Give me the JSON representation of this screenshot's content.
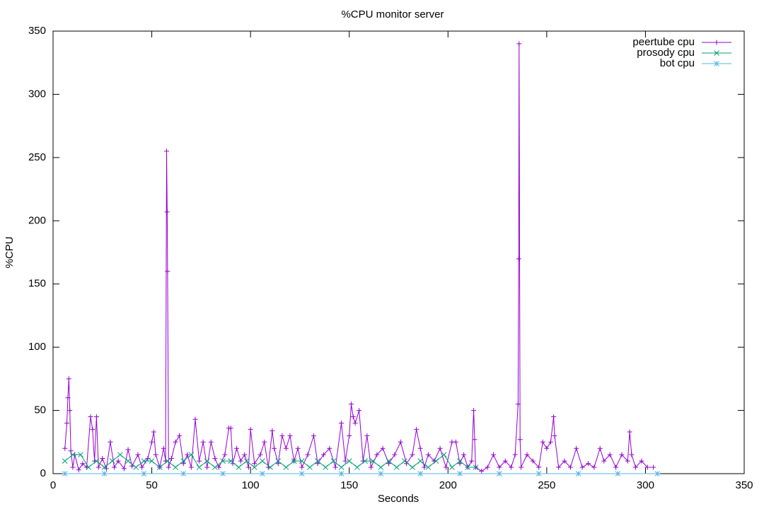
{
  "chart_data": {
    "type": "line",
    "title": "%CPU monitor server",
    "xlabel": "Seconds",
    "ylabel": "%CPU",
    "xlim": [
      0,
      350
    ],
    "xticks": [
      0,
      50,
      100,
      150,
      200,
      250,
      300,
      350
    ],
    "ylim": [
      0,
      350
    ],
    "yticks": [
      0,
      50,
      100,
      150,
      200,
      250,
      300,
      350
    ],
    "grid": false,
    "legend": "top-right",
    "series": [
      {
        "name": "peertube cpu",
        "color": "#9400d3",
        "marker": "plus",
        "x": [
          6,
          7,
          7.5,
          8,
          8.5,
          9,
          10,
          11,
          13,
          15,
          17,
          19,
          20,
          21,
          22,
          23,
          25,
          27,
          29,
          31,
          33,
          36,
          38,
          40,
          43,
          45,
          48,
          50,
          51,
          52,
          54,
          56,
          57,
          57.5,
          57.8,
          58,
          58.5,
          60,
          62,
          64,
          66,
          68,
          70,
          72,
          74,
          76,
          78,
          80,
          82,
          84,
          87,
          89,
          90,
          91,
          93,
          95,
          97,
          99,
          100,
          102,
          105,
          107,
          109,
          111,
          112,
          114,
          116,
          118,
          120,
          122,
          124,
          126,
          129,
          132,
          134,
          137,
          140,
          143,
          146,
          148,
          150,
          151,
          152,
          153,
          155,
          157,
          159,
          161,
          164,
          167,
          170,
          173,
          176,
          179,
          182,
          184,
          186,
          188,
          190,
          193,
          196,
          199,
          202,
          204,
          206,
          208,
          210,
          212,
          213,
          213.5,
          214,
          217,
          220,
          223,
          226,
          229,
          232,
          234,
          235.5,
          235.8,
          236,
          236.5,
          237,
          240,
          243,
          246,
          248,
          250,
          252,
          253.5,
          254,
          256,
          259,
          262,
          265,
          268,
          271,
          274,
          277,
          279,
          282,
          285,
          288,
          291,
          292,
          293,
          295,
          298,
          301,
          304
        ],
        "values": [
          20,
          40,
          60,
          75,
          50,
          18,
          5,
          15,
          3,
          8,
          5,
          45,
          35,
          10,
          45,
          5,
          12,
          4,
          25,
          5,
          10,
          4,
          19,
          6,
          15,
          5,
          12,
          25,
          33,
          15,
          5,
          20,
          10,
          255,
          207,
          160,
          5,
          12,
          25,
          30,
          8,
          15,
          5,
          43,
          10,
          25,
          5,
          25,
          12,
          5,
          15,
          36,
          36,
          8,
          20,
          10,
          15,
          5,
          35,
          8,
          15,
          25,
          5,
          34,
          20,
          8,
          30,
          20,
          30,
          10,
          20,
          5,
          15,
          30,
          8,
          15,
          20,
          5,
          40,
          10,
          30,
          55,
          45,
          40,
          50,
          10,
          30,
          5,
          15,
          20,
          8,
          15,
          25,
          8,
          15,
          35,
          20,
          5,
          15,
          10,
          20,
          5,
          25,
          25,
          8,
          15,
          5,
          10,
          50,
          27,
          5,
          2,
          5,
          15,
          5,
          10,
          5,
          15,
          55,
          170,
          340,
          27,
          5,
          15,
          10,
          5,
          25,
          20,
          25,
          45,
          30,
          5,
          10,
          5,
          20,
          5,
          8,
          5,
          20,
          10,
          15,
          5,
          15,
          10,
          33,
          15,
          5,
          10,
          5,
          5
        ]
      },
      {
        "name": "prosody cpu",
        "color": "#009e73",
        "marker": "cross",
        "x": [
          6,
          10,
          14,
          18,
          22,
          26,
          30,
          34,
          38,
          42,
          46,
          50,
          54,
          58,
          62,
          66,
          70,
          74,
          78,
          82,
          86,
          90,
          94,
          98,
          102,
          106,
          110,
          114,
          118,
          122,
          126,
          130,
          134,
          138,
          142,
          146,
          150,
          154,
          158,
          162,
          166,
          170,
          174,
          178,
          182,
          186,
          190,
          194,
          198,
          202,
          206,
          210,
          214
        ],
        "values": [
          10,
          15,
          15,
          5,
          10,
          5,
          10,
          15,
          10,
          5,
          10,
          10,
          5,
          10,
          5,
          10,
          15,
          5,
          10,
          5,
          10,
          10,
          5,
          10,
          5,
          10,
          5,
          10,
          5,
          10,
          10,
          5,
          10,
          5,
          10,
          5,
          10,
          5,
          10,
          10,
          5,
          10,
          5,
          10,
          5,
          10,
          5,
          10,
          15,
          5,
          10,
          5,
          5
        ]
      },
      {
        "name": "bot cpu",
        "color": "#56b4e9",
        "marker": "star",
        "x": [
          6,
          26,
          46,
          66,
          86,
          106,
          126,
          146,
          166,
          186,
          206,
          226,
          246,
          266,
          286,
          306
        ],
        "values": [
          0,
          0,
          0,
          0,
          0,
          0,
          0,
          0,
          0,
          0,
          0,
          0,
          0,
          0,
          0,
          0
        ]
      }
    ]
  }
}
